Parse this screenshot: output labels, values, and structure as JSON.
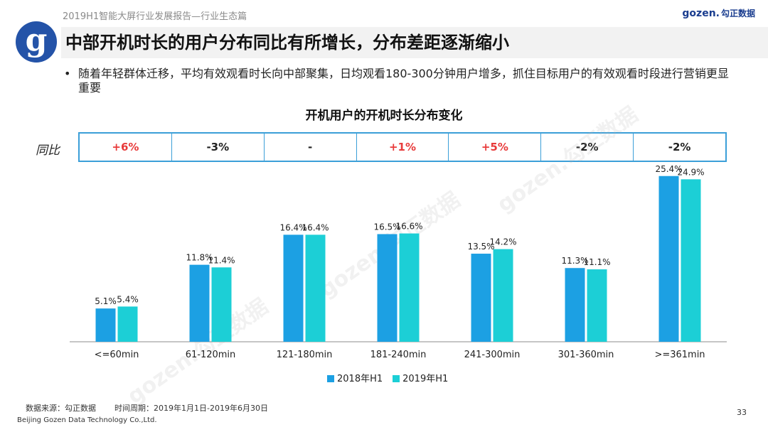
{
  "header": {
    "report_title": "2019H1智能大屏行业发展报告—行业生态篇"
  },
  "brand": {
    "logo_text": "gozen.",
    "logo_zh": "勾正数据",
    "watermark": "gozen.勾正数据"
  },
  "slide": {
    "title": "中部开机时长的用户分布同比有所增长，分布差距逐渐缩小",
    "bullet": "随着年轻群体迁移，平均有效观看时长向中部聚集，日均观看180-300分钟用户增多，抓住目标用户的有效观看时段进行营销更显重要",
    "bullet_marker": "•"
  },
  "yoy": {
    "label": "同比",
    "values": [
      "+6%",
      "-3%",
      "-",
      "+1%",
      "+5%",
      "-2%",
      "-2%"
    ]
  },
  "chart_data": {
    "type": "bar",
    "title": "开机用户的开机时长分布变化",
    "categories": [
      "<=60min",
      "61-120min",
      "121-180min",
      "181-240min",
      "241-300min",
      "301-360min",
      ">=361min"
    ],
    "series": [
      {
        "name": "2018年H1",
        "values": [
          5.1,
          11.8,
          16.4,
          16.5,
          13.5,
          11.3,
          25.4
        ],
        "color": "#1ca0e3"
      },
      {
        "name": "2019年H1",
        "values": [
          5.4,
          11.4,
          16.4,
          16.6,
          14.2,
          11.1,
          24.9
        ],
        "color": "#1ccfd6"
      }
    ],
    "value_suffix": "%",
    "ylim": [
      0,
      27
    ],
    "xlabel": "",
    "ylabel": "",
    "grid": false,
    "legend": "bottom-center"
  },
  "footer": {
    "source": "数据来源：勾正数据",
    "period": "时间周期：2019年1月1日-2019年6月30日",
    "company": "Beijing Gozen Data Technology Co.,Ltd.",
    "page": "33"
  }
}
